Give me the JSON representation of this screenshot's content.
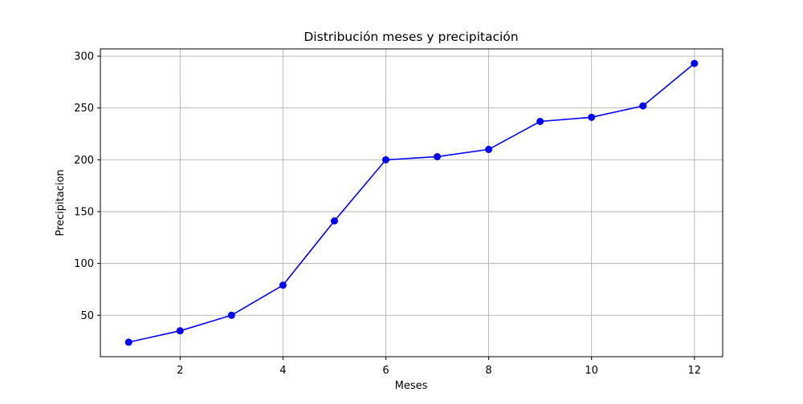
{
  "chart_data": {
    "type": "line",
    "title": "Distribución meses y precipitación",
    "xlabel": "Meses",
    "ylabel": "Precipitacion",
    "x": [
      1,
      2,
      3,
      4,
      5,
      6,
      7,
      8,
      9,
      10,
      11,
      12
    ],
    "series": [
      {
        "values": [
          24,
          35,
          50,
          79,
          141,
          200,
          203,
          210,
          237,
          241,
          252,
          293
        ],
        "color": "#0000ff",
        "marker": "circle"
      }
    ],
    "xlim": [
      0.45,
      12.55
    ],
    "ylim": [
      10,
      307
    ],
    "xticks": [
      2,
      4,
      6,
      8,
      10,
      12
    ],
    "yticks": [
      50,
      100,
      150,
      200,
      250,
      300
    ],
    "grid": true
  }
}
